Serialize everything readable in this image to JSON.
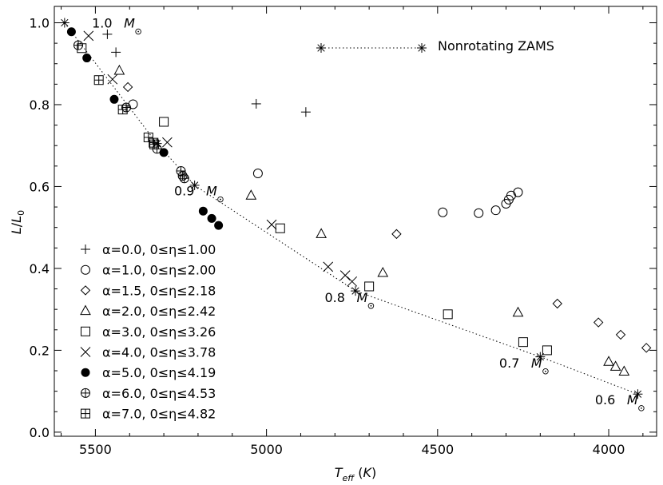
{
  "chart_data": {
    "type": "scatter",
    "title": "",
    "xlabel": "T_eff (K)",
    "ylabel": "L/L0",
    "xlim": [
      5620,
      3860
    ],
    "ylim": [
      -0.01,
      1.04
    ],
    "x_ticks": [
      5500,
      5000,
      4500,
      4000
    ],
    "y_ticks": [
      0.0,
      0.2,
      0.4,
      0.6,
      0.8,
      1.0
    ],
    "x_tick_labels": [
      "5500",
      "5000",
      "4500",
      "4000"
    ],
    "y_tick_labels": [
      "0.0",
      "0.2",
      "0.4",
      "0.6",
      "0.8",
      "1.0"
    ],
    "legend_zams": "Nonrotating ZAMS",
    "series": [
      {
        "name": "α=0.0, 0≤η≤1.00",
        "marker": "plus",
        "points": [
          [
            5465,
            0.972
          ],
          [
            5440,
            0.928
          ],
          [
            5030,
            0.802
          ],
          [
            4885,
            0.782
          ]
        ]
      },
      {
        "name": "α=1.0, 0≤η≤2.00",
        "marker": "circle",
        "points": [
          [
            5390,
            0.801
          ],
          [
            5025,
            0.632
          ],
          [
            4485,
            0.537
          ],
          [
            4380,
            0.535
          ],
          [
            4330,
            0.542
          ],
          [
            4300,
            0.558
          ],
          [
            4292,
            0.568
          ],
          [
            4285,
            0.578
          ],
          [
            4265,
            0.586
          ]
        ]
      },
      {
        "name": "α=1.5, 0≤η≤2.18",
        "marker": "diamond",
        "points": [
          [
            5405,
            0.843
          ],
          [
            4620,
            0.484
          ],
          [
            4150,
            0.314
          ],
          [
            4030,
            0.268
          ],
          [
            3965,
            0.238
          ],
          [
            3890,
            0.206
          ]
        ]
      },
      {
        "name": "α=2.0, 0≤η≤2.42",
        "marker": "triangle",
        "points": [
          [
            5430,
            0.883
          ],
          [
            5045,
            0.578
          ],
          [
            4840,
            0.484
          ],
          [
            4660,
            0.389
          ],
          [
            4265,
            0.292
          ],
          [
            4000,
            0.172
          ],
          [
            3980,
            0.16
          ],
          [
            3955,
            0.148
          ]
        ]
      },
      {
        "name": "α=3.0, 0≤η≤3.26",
        "marker": "square",
        "points": [
          [
            5540,
            0.938
          ],
          [
            5300,
            0.758
          ],
          [
            4960,
            0.498
          ],
          [
            4700,
            0.356
          ],
          [
            4470,
            0.288
          ],
          [
            4250,
            0.22
          ],
          [
            4180,
            0.2
          ]
        ]
      },
      {
        "name": "α=4.0, 0≤η≤3.78",
        "marker": "x",
        "points": [
          [
            5520,
            0.968
          ],
          [
            5450,
            0.862
          ],
          [
            5290,
            0.708
          ],
          [
            4985,
            0.507
          ],
          [
            4820,
            0.404
          ],
          [
            4770,
            0.383
          ],
          [
            4750,
            0.368
          ]
        ]
      },
      {
        "name": "α=5.0, 0≤η≤4.19",
        "marker": "filled-circle",
        "points": [
          [
            5570,
            0.978
          ],
          [
            5525,
            0.914
          ],
          [
            5445,
            0.813
          ],
          [
            5300,
            0.683
          ],
          [
            5185,
            0.54
          ],
          [
            5160,
            0.522
          ],
          [
            5140,
            0.505
          ]
        ]
      },
      {
        "name": "α=6.0, 0≤η≤4.53",
        "marker": "circle-plus",
        "points": [
          [
            5550,
            0.945
          ],
          [
            5410,
            0.793
          ],
          [
            5320,
            0.692
          ],
          [
            5250,
            0.638
          ],
          [
            5245,
            0.626
          ],
          [
            5240,
            0.62
          ]
        ]
      },
      {
        "name": "α=7.0, 0≤η≤4.82",
        "marker": "square-plus",
        "points": [
          [
            5490,
            0.86
          ],
          [
            5420,
            0.788
          ],
          [
            5345,
            0.72
          ],
          [
            5330,
            0.707
          ],
          [
            5328,
            0.703
          ]
        ]
      }
    ],
    "zams": {
      "name": "Nonrotating ZAMS",
      "points": [
        [
          5590,
          1.0
        ],
        [
          5320,
          0.705
        ],
        [
          5210,
          0.603
        ],
        [
          4740,
          0.345
        ],
        [
          4200,
          0.184
        ],
        [
          3915,
          0.093
        ]
      ]
    },
    "mass_labels": [
      {
        "text": "1.0",
        "x": 5510,
        "y": 1.0
      },
      {
        "text": "0.9",
        "x": 5270,
        "y": 0.59
      },
      {
        "text": "0.8",
        "x": 4830,
        "y": 0.33
      },
      {
        "text": "0.7",
        "x": 4320,
        "y": 0.17
      },
      {
        "text": "0.6",
        "x": 4040,
        "y": 0.08
      }
    ]
  }
}
